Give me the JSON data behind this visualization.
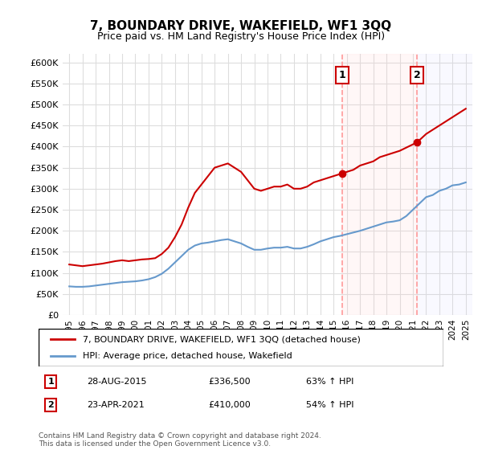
{
  "title": "7, BOUNDARY DRIVE, WAKEFIELD, WF1 3QQ",
  "subtitle": "Price paid vs. HM Land Registry's House Price Index (HPI)",
  "legend_line1": "7, BOUNDARY DRIVE, WAKEFIELD, WF1 3QQ (detached house)",
  "legend_line2": "HPI: Average price, detached house, Wakefield",
  "annotation1_label": "1",
  "annotation1_date": "28-AUG-2015",
  "annotation1_price": "£336,500",
  "annotation1_hpi": "63% ↑ HPI",
  "annotation1_year": 2015.65,
  "annotation1_value": 336500,
  "annotation2_label": "2",
  "annotation2_date": "23-APR-2021",
  "annotation2_price": "£410,000",
  "annotation2_hpi": "54% ↑ HPI",
  "annotation2_year": 2021.31,
  "annotation2_value": 410000,
  "red_color": "#cc0000",
  "blue_color": "#6699cc",
  "dashed_color": "#ff9999",
  "shaded_color": "#fff0f0",
  "shaded2_color": "#f0f0ff",
  "ylim": [
    0,
    620000
  ],
  "yticks": [
    0,
    50000,
    100000,
    150000,
    200000,
    250000,
    300000,
    350000,
    400000,
    450000,
    500000,
    550000,
    600000
  ],
  "ytick_labels": [
    "£0",
    "£50K",
    "£100K",
    "£150K",
    "£200K",
    "£250K",
    "£300K",
    "£350K",
    "£400K",
    "£450K",
    "£500K",
    "£550K",
    "£600K"
  ],
  "footer": "Contains HM Land Registry data © Crown copyright and database right 2024.\nThis data is licensed under the Open Government Licence v3.0.",
  "red_x": [
    1995.0,
    1995.5,
    1996.0,
    1996.5,
    1997.0,
    1997.5,
    1998.0,
    1998.5,
    1999.0,
    1999.5,
    2000.0,
    2000.5,
    2001.0,
    2001.5,
    2002.0,
    2002.5,
    2003.0,
    2003.5,
    2004.0,
    2004.5,
    2005.0,
    2005.5,
    2006.0,
    2006.5,
    2007.0,
    2007.5,
    2008.0,
    2008.5,
    2009.0,
    2009.5,
    2010.0,
    2010.5,
    2011.0,
    2011.5,
    2012.0,
    2012.5,
    2013.0,
    2013.5,
    2014.0,
    2014.5,
    2015.0,
    2015.65,
    2016.0,
    2016.5,
    2017.0,
    2017.5,
    2018.0,
    2018.5,
    2019.0,
    2019.5,
    2020.0,
    2021.31,
    2022.0,
    2022.5,
    2023.0,
    2023.5,
    2024.0,
    2024.5,
    2025.0
  ],
  "red_y": [
    120000,
    118000,
    116000,
    118000,
    120000,
    122000,
    125000,
    128000,
    130000,
    128000,
    130000,
    132000,
    133000,
    135000,
    145000,
    160000,
    185000,
    215000,
    255000,
    290000,
    310000,
    330000,
    350000,
    355000,
    360000,
    350000,
    340000,
    320000,
    300000,
    295000,
    300000,
    305000,
    305000,
    310000,
    300000,
    300000,
    305000,
    315000,
    320000,
    325000,
    330000,
    336500,
    340000,
    345000,
    355000,
    360000,
    365000,
    375000,
    380000,
    385000,
    390000,
    410000,
    430000,
    440000,
    450000,
    460000,
    470000,
    480000,
    490000
  ],
  "blue_x": [
    1995.0,
    1995.5,
    1996.0,
    1996.5,
    1997.0,
    1997.5,
    1998.0,
    1998.5,
    1999.0,
    1999.5,
    2000.0,
    2000.5,
    2001.0,
    2001.5,
    2002.0,
    2002.5,
    2003.0,
    2003.5,
    2004.0,
    2004.5,
    2005.0,
    2005.5,
    2006.0,
    2006.5,
    2007.0,
    2007.5,
    2008.0,
    2008.5,
    2009.0,
    2009.5,
    2010.0,
    2010.5,
    2011.0,
    2011.5,
    2012.0,
    2012.5,
    2013.0,
    2013.5,
    2014.0,
    2014.5,
    2015.0,
    2015.5,
    2016.0,
    2016.5,
    2017.0,
    2017.5,
    2018.0,
    2018.5,
    2019.0,
    2019.5,
    2020.0,
    2020.5,
    2021.0,
    2021.5,
    2022.0,
    2022.5,
    2023.0,
    2023.5,
    2024.0,
    2024.5,
    2025.0
  ],
  "blue_y": [
    68000,
    67000,
    67000,
    68000,
    70000,
    72000,
    74000,
    76000,
    78000,
    79000,
    80000,
    82000,
    85000,
    90000,
    98000,
    110000,
    125000,
    140000,
    155000,
    165000,
    170000,
    172000,
    175000,
    178000,
    180000,
    175000,
    170000,
    162000,
    155000,
    155000,
    158000,
    160000,
    160000,
    162000,
    158000,
    158000,
    162000,
    168000,
    175000,
    180000,
    185000,
    188000,
    192000,
    196000,
    200000,
    205000,
    210000,
    215000,
    220000,
    222000,
    225000,
    235000,
    250000,
    265000,
    280000,
    285000,
    295000,
    300000,
    308000,
    310000,
    315000
  ]
}
